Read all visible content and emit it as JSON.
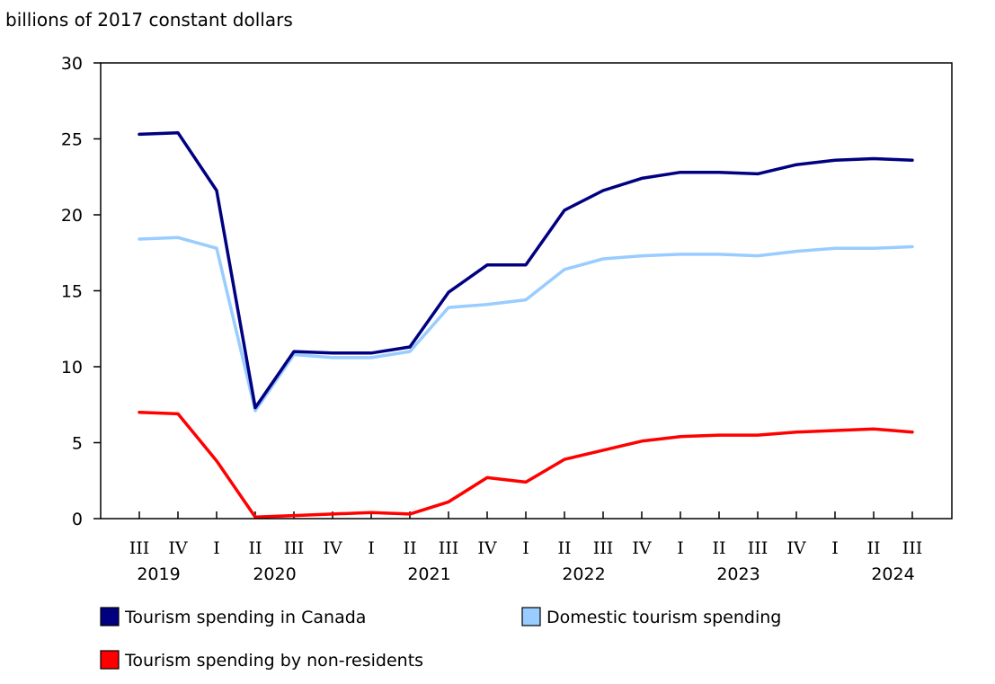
{
  "chart_data": {
    "type": "line",
    "ylabel": "billions of 2017 constant dollars",
    "ylim": [
      0,
      30
    ],
    "yticks": [
      0,
      5,
      10,
      15,
      20,
      25,
      30
    ],
    "x": [
      "III",
      "IV",
      "I",
      "II",
      "III",
      "IV",
      "I",
      "II",
      "III",
      "IV",
      "I",
      "II",
      "III",
      "IV",
      "I",
      "II",
      "III",
      "IV",
      "I",
      "II",
      "III"
    ],
    "years": [
      {
        "label": "2019",
        "index": 0.5
      },
      {
        "label": "2020",
        "index": 3.5
      },
      {
        "label": "2021",
        "index": 7.5
      },
      {
        "label": "2022",
        "index": 11.5
      },
      {
        "label": "2023",
        "index": 15.5
      },
      {
        "label": "2024",
        "index": 19.5
      }
    ],
    "series": [
      {
        "name": "Tourism spending in Canada",
        "color": "#000080",
        "values": [
          25.3,
          25.4,
          21.6,
          7.3,
          11.0,
          10.9,
          10.9,
          11.3,
          14.9,
          16.7,
          16.7,
          20.3,
          21.6,
          22.4,
          22.8,
          22.8,
          22.7,
          23.3,
          23.6,
          23.7,
          23.6
        ]
      },
      {
        "name": "Domestic tourism spending",
        "color": "#99ccff",
        "values": [
          18.4,
          18.5,
          17.8,
          7.1,
          10.8,
          10.6,
          10.6,
          11.0,
          13.9,
          14.1,
          14.4,
          16.4,
          17.1,
          17.3,
          17.4,
          17.4,
          17.3,
          17.6,
          17.8,
          17.8,
          17.9
        ]
      },
      {
        "name": "Tourism spending by non-residents",
        "color": "#ff0000",
        "values": [
          7.0,
          6.9,
          3.8,
          0.1,
          0.2,
          0.3,
          0.4,
          0.3,
          1.1,
          2.7,
          2.4,
          3.9,
          4.5,
          5.1,
          5.4,
          5.5,
          5.5,
          5.7,
          5.8,
          5.9,
          5.7
        ]
      }
    ],
    "legend_position": "bottom"
  }
}
